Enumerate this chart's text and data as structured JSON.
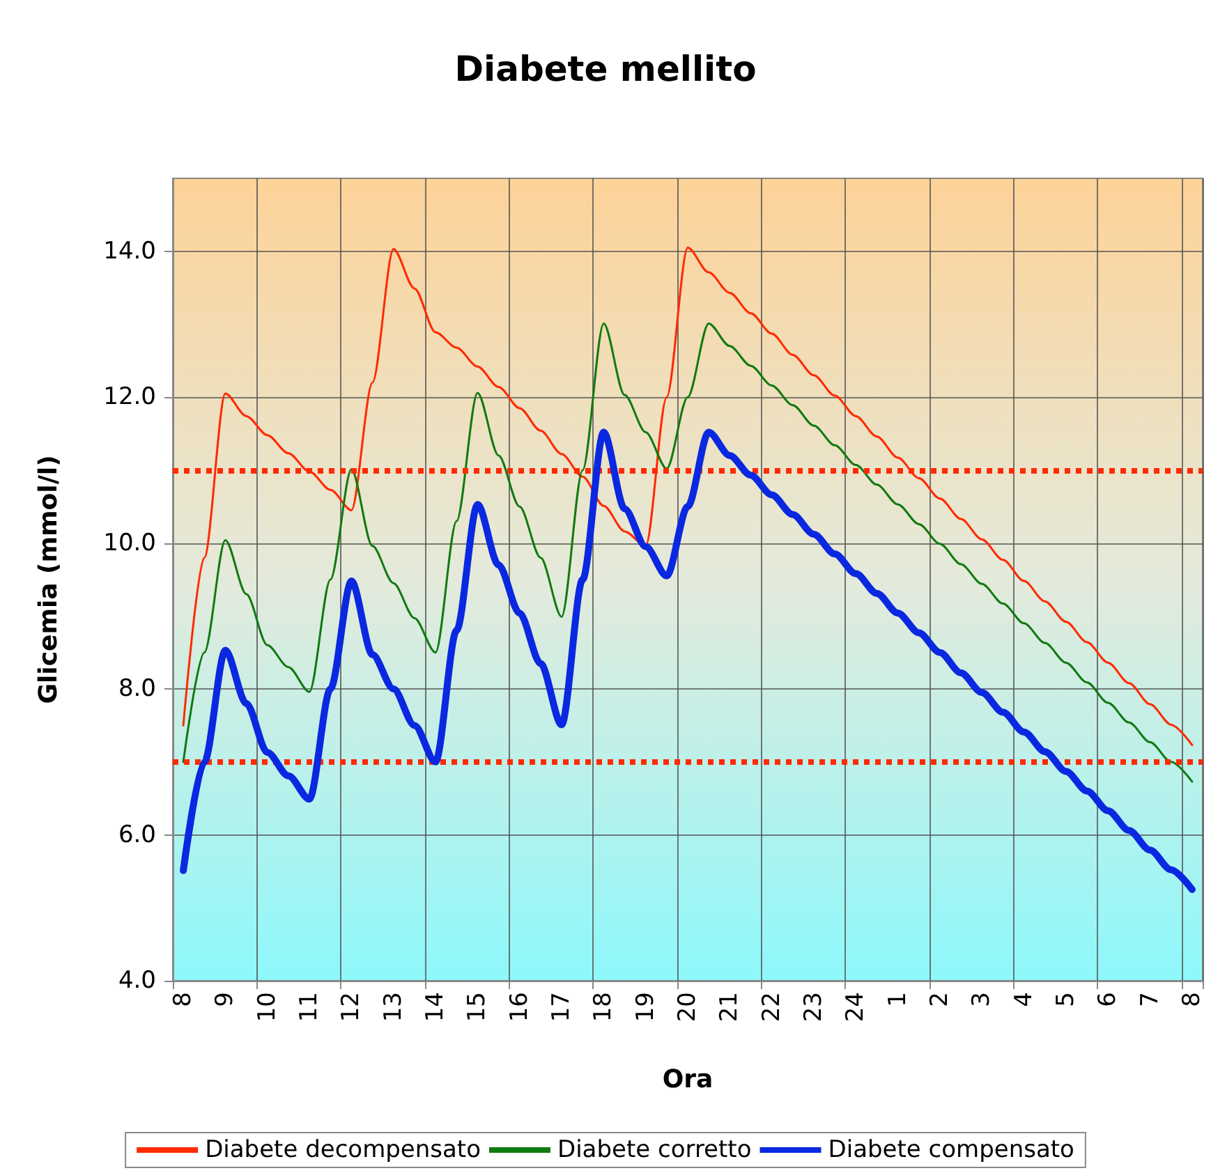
{
  "chart_data": {
    "type": "line",
    "title": "Diabete mellito",
    "xlabel": "Ora",
    "ylabel": "Glicemia (mmol/l)",
    "categories": [
      "8",
      null,
      "9",
      null,
      "10",
      null,
      "11",
      null,
      "12",
      null,
      "13",
      null,
      "14",
      null,
      "15",
      null,
      "16",
      null,
      "17",
      null,
      "18",
      null,
      "19",
      null,
      "20",
      null,
      "21",
      null,
      "22",
      null,
      "23",
      null,
      "24",
      null,
      "1",
      null,
      "2",
      null,
      "3",
      null,
      "4",
      null,
      "5",
      null,
      "6",
      null,
      "7",
      null,
      "8"
    ],
    "ylim": [
      4,
      15
    ],
    "yticks": [
      {
        "value": 4,
        "label": "4.0"
      },
      {
        "value": 6,
        "label": "6.0"
      },
      {
        "value": 8,
        "label": "8.0"
      },
      {
        "value": 10,
        "label": "10.0"
      },
      {
        "value": 12,
        "label": "12.0"
      },
      {
        "value": 14,
        "label": "14.0"
      }
    ],
    "grid": true,
    "legend": "bottom",
    "marker": "none",
    "ref_lines": [
      {
        "axis": "y",
        "value": 11,
        "color": "#ff2a00",
        "line_style": "dotted"
      },
      {
        "axis": "y",
        "value": 7,
        "color": "#ff2a00",
        "line_style": "dotted"
      }
    ],
    "series": [
      {
        "name": "Diabete decompensato",
        "color": "#ff2a00",
        "values": [
          7.5,
          9.8,
          12.05,
          11.74,
          11.48,
          11.23,
          10.98,
          10.73,
          10.45,
          12.2,
          14.03,
          13.49,
          12.89,
          12.68,
          12.42,
          12.14,
          11.85,
          11.54,
          11.22,
          10.91,
          10.51,
          10.16,
          9.96,
          12.0,
          14.05,
          13.71,
          13.43,
          13.15,
          12.87,
          12.58,
          12.3,
          12.02,
          11.74,
          11.46,
          11.17,
          10.89,
          10.61,
          10.33,
          10.05,
          9.77,
          9.48,
          9.2,
          8.92,
          8.64,
          8.36,
          8.08,
          7.79,
          7.51,
          7.23
        ]
      },
      {
        "name": "Diabete corretto",
        "color": "#107a10",
        "values": [
          7.0,
          8.5,
          10.04,
          9.3,
          8.6,
          8.3,
          7.96,
          9.5,
          11.01,
          9.96,
          9.45,
          8.97,
          8.5,
          10.3,
          12.06,
          11.2,
          10.5,
          9.8,
          8.99,
          11.0,
          13.01,
          12.03,
          11.52,
          11.02,
          12.0,
          13.01,
          12.7,
          12.43,
          12.16,
          11.89,
          11.61,
          11.34,
          11.07,
          10.8,
          10.53,
          10.26,
          9.99,
          9.71,
          9.44,
          9.17,
          8.9,
          8.63,
          8.36,
          8.09,
          7.81,
          7.54,
          7.27,
          7.0,
          6.73
        ]
      },
      {
        "name": "Diabete compensato",
        "color": "#0a28e0",
        "values": [
          5.51,
          7.0,
          8.53,
          7.8,
          7.13,
          6.81,
          6.49,
          8.0,
          9.48,
          8.47,
          8.0,
          7.5,
          7.0,
          8.8,
          10.53,
          9.7,
          9.04,
          8.35,
          7.51,
          9.5,
          11.52,
          10.47,
          9.95,
          9.55,
          10.5,
          11.52,
          11.2,
          10.93,
          10.66,
          10.39,
          10.12,
          9.85,
          9.58,
          9.31,
          9.04,
          8.77,
          8.5,
          8.22,
          7.95,
          7.68,
          7.41,
          7.14,
          6.87,
          6.6,
          6.33,
          6.06,
          5.79,
          5.52,
          5.25
        ]
      }
    ]
  }
}
